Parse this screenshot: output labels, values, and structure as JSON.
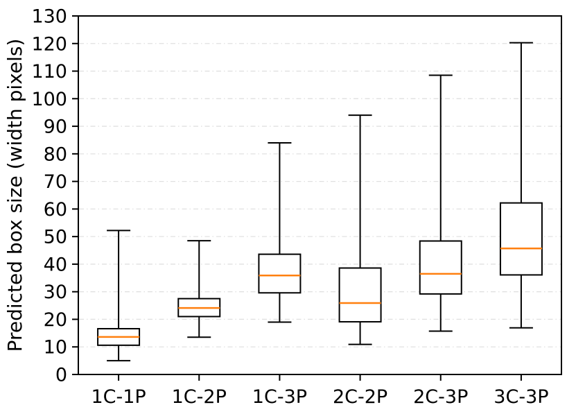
{
  "chart_data": {
    "type": "boxplot",
    "title": "",
    "xlabel": "",
    "ylabel": "Predicted box size (width pixels)",
    "categories": [
      "1C-1P",
      "1C-2P",
      "1C-3P",
      "2C-2P",
      "2C-3P",
      "3C-3P"
    ],
    "series": [
      {
        "name": "1C-1P",
        "whisker_low": 5.0,
        "q1": 10.6,
        "median": 13.6,
        "q3": 16.6,
        "whisker_high": 52.2
      },
      {
        "name": "1C-2P",
        "whisker_low": 13.5,
        "q1": 21.0,
        "median": 24.1,
        "q3": 27.5,
        "whisker_high": 48.5
      },
      {
        "name": "1C-3P",
        "whisker_low": 19.0,
        "q1": 29.6,
        "median": 35.9,
        "q3": 43.6,
        "whisker_high": 84.0
      },
      {
        "name": "2C-2P",
        "whisker_low": 10.9,
        "q1": 19.1,
        "median": 25.9,
        "q3": 38.6,
        "whisker_high": 94.0
      },
      {
        "name": "2C-3P",
        "whisker_low": 15.7,
        "q1": 29.2,
        "median": 36.5,
        "q3": 48.4,
        "whisker_high": 108.5
      },
      {
        "name": "3C-3P",
        "whisker_low": 16.9,
        "q1": 36.1,
        "median": 45.7,
        "q3": 62.2,
        "whisker_high": 120.3
      }
    ],
    "ylim": [
      0,
      130
    ],
    "yticks": [
      0,
      10,
      20,
      30,
      40,
      50,
      60,
      70,
      80,
      90,
      100,
      110,
      120,
      130
    ],
    "grid": {
      "axis": "y",
      "style": "dash-dot",
      "visible": true
    },
    "legend": "none",
    "colors": {
      "median": "#ff7f0e",
      "box_edge": "#000000",
      "box_fill": "#ffffff",
      "whisker": "#000000",
      "grid": "#e0e0e0",
      "background": "#ffffff",
      "text": "#000000"
    }
  }
}
